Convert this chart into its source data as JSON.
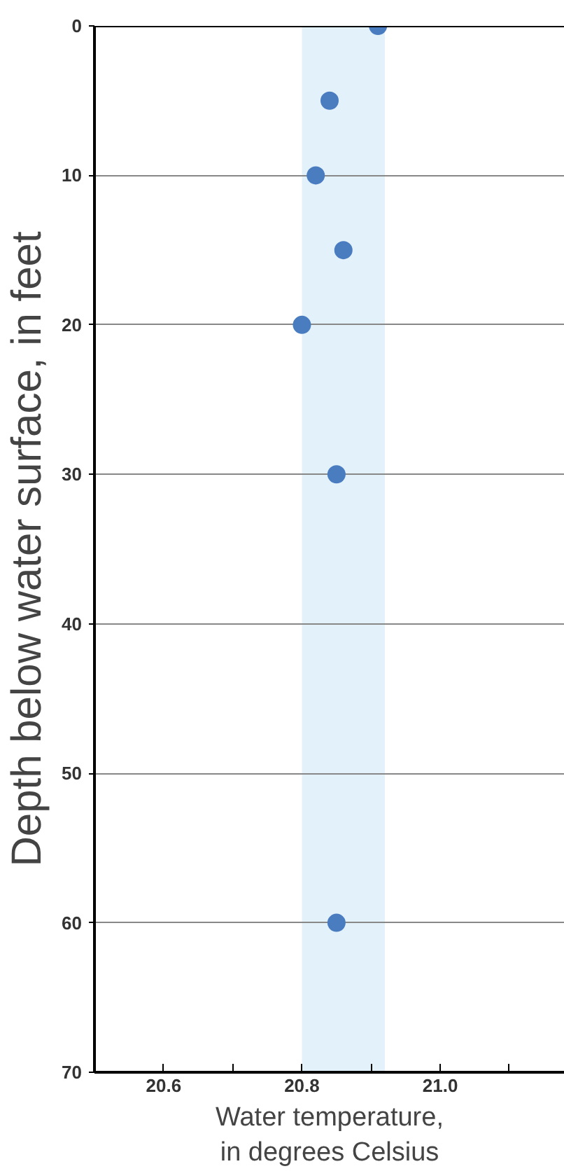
{
  "chart_data": {
    "type": "scatter",
    "xlabel": "Water temperature,\nin degrees Celsius",
    "ylabel": "Depth below water surface, in feet",
    "x": [
      20.91,
      20.84,
      20.82,
      20.86,
      20.8,
      20.85,
      20.85
    ],
    "values": [
      0,
      5,
      10,
      15,
      20,
      30,
      60
    ],
    "color": "#4a7cc0",
    "marker": "circle",
    "xlim": [
      20.5,
      21.18
    ],
    "ylim": [
      70,
      0
    ],
    "xticks": [
      20.6,
      {
        "value": 20.7,
        "label": null
      },
      20.8,
      {
        "value": 20.9,
        "label": null
      },
      {
        "value": 21.0,
        "label": "21.0"
      },
      {
        "value": 21.1,
        "label": null
      }
    ],
    "yticks": [
      0,
      10,
      20,
      30,
      40,
      50,
      60,
      70
    ],
    "grid": "y",
    "bands": [
      {
        "axis": "x",
        "from": 20.8,
        "to": 20.92,
        "color": "#e3f1fb"
      }
    ]
  }
}
